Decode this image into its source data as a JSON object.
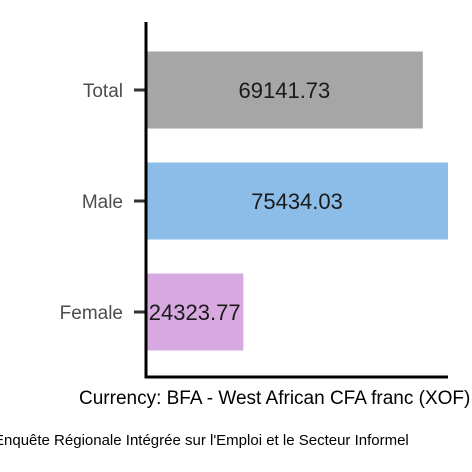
{
  "chart_data": {
    "type": "bar",
    "orientation": "horizontal",
    "categories": [
      "Total",
      "Male",
      "Female"
    ],
    "values": [
      69141.73,
      75434.03,
      24323.77
    ],
    "value_labels": [
      "69141.73",
      "75434.03",
      "24323.77"
    ],
    "bar_colors": [
      "#a6a6a6",
      "#8bbde8",
      "#d8a8e0"
    ],
    "xlabel": "Currency: BFA - West African CFA franc (XOF)",
    "caption": "Enquête Régionale Intégrée sur l'Emploi et le Secteur Informel",
    "title": "",
    "ylabel": "",
    "xlim": [
      0,
      75434.03
    ],
    "grid": false,
    "legend": "none"
  }
}
